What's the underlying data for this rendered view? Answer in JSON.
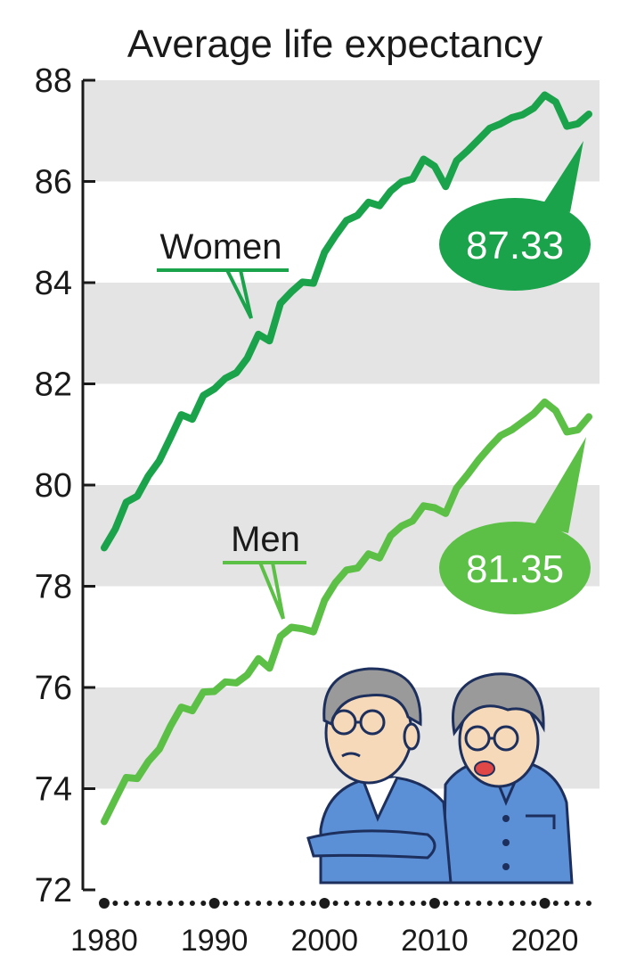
{
  "chart_data": {
    "type": "line",
    "title": "Average life expectancy",
    "xlabel": "",
    "ylabel": "",
    "xlim": [
      1980,
      2024
    ],
    "ylim": [
      72,
      88
    ],
    "yticks": [
      72,
      74,
      76,
      78,
      80,
      82,
      84,
      86,
      88
    ],
    "xticks": [
      1980,
      1990,
      2000,
      2010,
      2020
    ],
    "grid": "alternating horizontal bands",
    "series": [
      {
        "name": "Women",
        "color": "#1aa34a",
        "x": [
          1980,
          1981,
          1982,
          1983,
          1984,
          1985,
          1986,
          1987,
          1988,
          1989,
          1990,
          1991,
          1992,
          1993,
          1994,
          1995,
          1996,
          1997,
          1998,
          1999,
          2000,
          2001,
          2002,
          2003,
          2004,
          2005,
          2006,
          2007,
          2008,
          2009,
          2010,
          2011,
          2012,
          2013,
          2014,
          2015,
          2016,
          2017,
          2018,
          2019,
          2020,
          2021,
          2022,
          2023,
          2024
        ],
        "values": [
          78.76,
          79.13,
          79.66,
          79.78,
          80.18,
          80.48,
          80.93,
          81.39,
          81.3,
          81.77,
          81.9,
          82.11,
          82.22,
          82.51,
          82.98,
          82.85,
          83.59,
          83.82,
          84.01,
          83.99,
          84.6,
          84.93,
          85.23,
          85.33,
          85.59,
          85.52,
          85.81,
          85.99,
          86.05,
          86.44,
          86.3,
          85.9,
          86.41,
          86.61,
          86.83,
          87.05,
          87.14,
          87.26,
          87.32,
          87.45,
          87.71,
          87.57,
          87.09,
          87.14,
          87.33
        ]
      },
      {
        "name": "Men",
        "color": "#5cc046",
        "x": [
          1980,
          1981,
          1982,
          1983,
          1984,
          1985,
          1986,
          1987,
          1988,
          1989,
          1990,
          1991,
          1992,
          1993,
          1994,
          1995,
          1996,
          1997,
          1998,
          1999,
          2000,
          2001,
          2002,
          2003,
          2004,
          2005,
          2006,
          2007,
          2008,
          2009,
          2010,
          2011,
          2012,
          2013,
          2014,
          2015,
          2016,
          2017,
          2018,
          2019,
          2020,
          2021,
          2022,
          2023,
          2024
        ],
        "values": [
          73.35,
          73.79,
          74.22,
          74.2,
          74.54,
          74.78,
          75.23,
          75.61,
          75.54,
          75.91,
          75.92,
          76.11,
          76.09,
          76.25,
          76.57,
          76.38,
          77.01,
          77.19,
          77.16,
          77.1,
          77.72,
          78.07,
          78.32,
          78.36,
          78.64,
          78.56,
          79.0,
          79.19,
          79.29,
          79.59,
          79.55,
          79.44,
          79.94,
          80.21,
          80.5,
          80.75,
          80.98,
          81.09,
          81.25,
          81.41,
          81.64,
          81.47,
          81.05,
          81.09,
          81.35
        ]
      }
    ],
    "callouts": {
      "women_value": "87.33",
      "men_value": "81.35"
    }
  },
  "illustration": {
    "icon": "elderly-couple-icon",
    "shirt_color": "#5b8fd6",
    "hair_color": "#9a9a9a"
  }
}
